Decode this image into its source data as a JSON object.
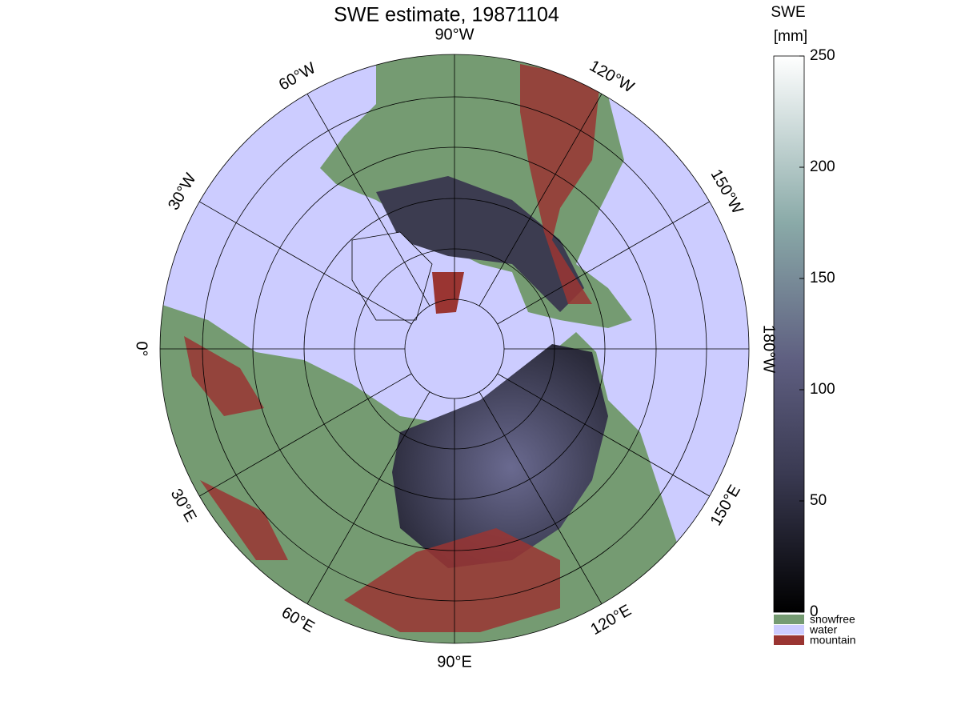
{
  "chart_data": {
    "type": "polar-map",
    "title": "SWE estimate, 19871104",
    "longitude_labels": [
      "0°",
      "30°W",
      "60°W",
      "90°W",
      "120°W",
      "150°W",
      "180°W",
      "150°E",
      "120°E",
      "90°E",
      "60°E",
      "30°E"
    ],
    "colorbar": {
      "title": [
        "SWE",
        "[mm]"
      ],
      "ylim": [
        0,
        250
      ],
      "yticks": [
        0,
        50,
        100,
        150,
        200,
        250
      ]
    },
    "legend": [
      {
        "name": "snowfree",
        "color": "#759b72"
      },
      {
        "name": "water",
        "color": "#ccccff"
      },
      {
        "name": "mountain",
        "color": "#9a3532"
      }
    ]
  }
}
